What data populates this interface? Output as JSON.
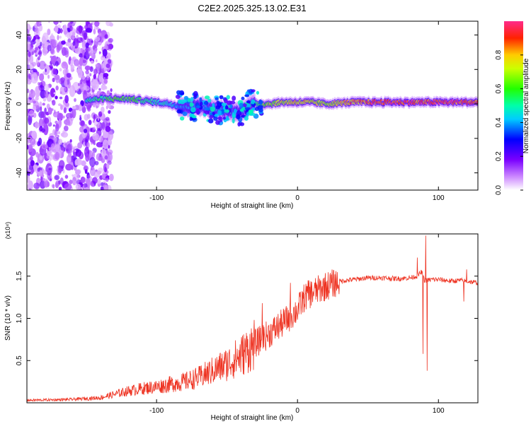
{
  "title": "C2E2.2025.325.13.02.E31",
  "chart_data": [
    {
      "type": "heatmap",
      "xlabel": "Height of straight line (km)",
      "ylabel": "Frequency (Hz)",
      "xlim": [
        -192,
        128
      ],
      "ylim": [
        -50,
        48
      ],
      "xticks": [
        -100,
        0,
        100
      ],
      "yticks": [
        -40,
        -20,
        0,
        20,
        40
      ],
      "colorbar": {
        "label": "Normalized spectral amplitude",
        "range": [
          0.0,
          1.0
        ],
        "ticks": [
          "0.0",
          "0.2",
          "0.4",
          "0.6",
          "0.8"
        ]
      },
      "ridge": {
        "x": [
          -150,
          -140,
          -130,
          -120,
          -110,
          -100,
          -90,
          -80,
          -70,
          -60,
          -50,
          -40,
          -35,
          -30,
          -20,
          -10,
          0,
          10,
          20,
          40,
          60,
          80,
          90,
          100,
          110,
          128
        ],
        "freq": [
          2,
          3,
          3,
          3,
          2,
          1,
          0,
          -2,
          -1,
          -3,
          -4,
          -5,
          -1,
          0,
          0,
          1,
          1,
          1,
          0,
          1,
          1,
          1,
          1,
          1,
          1,
          1
        ],
        "amplitude": [
          0.5,
          0.55,
          0.6,
          0.6,
          0.55,
          0.5,
          0.45,
          0.4,
          0.4,
          0.4,
          0.45,
          0.45,
          0.5,
          0.55,
          0.7,
          0.75,
          0.8,
          0.75,
          0.7,
          0.85,
          0.95,
          0.95,
          0.9,
          0.95,
          0.95,
          0.9
        ]
      },
      "noise_region_x": [
        -192,
        -132
      ]
    },
    {
      "type": "line",
      "xlabel": "Height of straight line (km)",
      "ylabel": "SNR (10 * v/v)",
      "y_multiplier": "(x10⁴)",
      "xlim": [
        -192,
        128
      ],
      "ylim": [
        0,
        2.0
      ],
      "xticks": [
        -100,
        0,
        100
      ],
      "yticks": [
        "0.5",
        "1.0",
        "1.5"
      ],
      "series": [
        {
          "name": "SNR",
          "color": "#ee3322",
          "x": [
            -192,
            -160,
            -140,
            -130,
            -120,
            -110,
            -100,
            -90,
            -80,
            -70,
            -60,
            -50,
            -40,
            -30,
            -20,
            -10,
            0,
            5,
            10,
            20,
            30,
            40,
            50,
            60,
            70,
            80,
            85,
            88,
            90,
            92,
            95,
            100,
            110,
            115,
            120,
            128
          ],
          "y": [
            0.03,
            0.04,
            0.06,
            0.1,
            0.14,
            0.17,
            0.19,
            0.22,
            0.25,
            0.3,
            0.38,
            0.46,
            0.56,
            0.7,
            0.82,
            0.95,
            1.1,
            1.25,
            1.3,
            1.38,
            1.44,
            1.46,
            1.48,
            1.48,
            1.47,
            1.48,
            1.5,
            1.55,
            1.45,
            1.45,
            1.46,
            1.46,
            1.44,
            1.45,
            1.44,
            1.42
          ]
        }
      ],
      "spikes": [
        {
          "x": -25,
          "y": 1.18
        },
        {
          "x": -5,
          "y": 1.42
        },
        {
          "x": 8,
          "y": 1.45
        },
        {
          "x": 85,
          "y": 1.72
        },
        {
          "x": 89,
          "y": 0.58
        },
        {
          "x": 91,
          "y": 1.98
        },
        {
          "x": 92,
          "y": 0.38
        },
        {
          "x": 118,
          "y": 1.2
        },
        {
          "x": 120,
          "y": 1.58
        }
      ]
    }
  ]
}
